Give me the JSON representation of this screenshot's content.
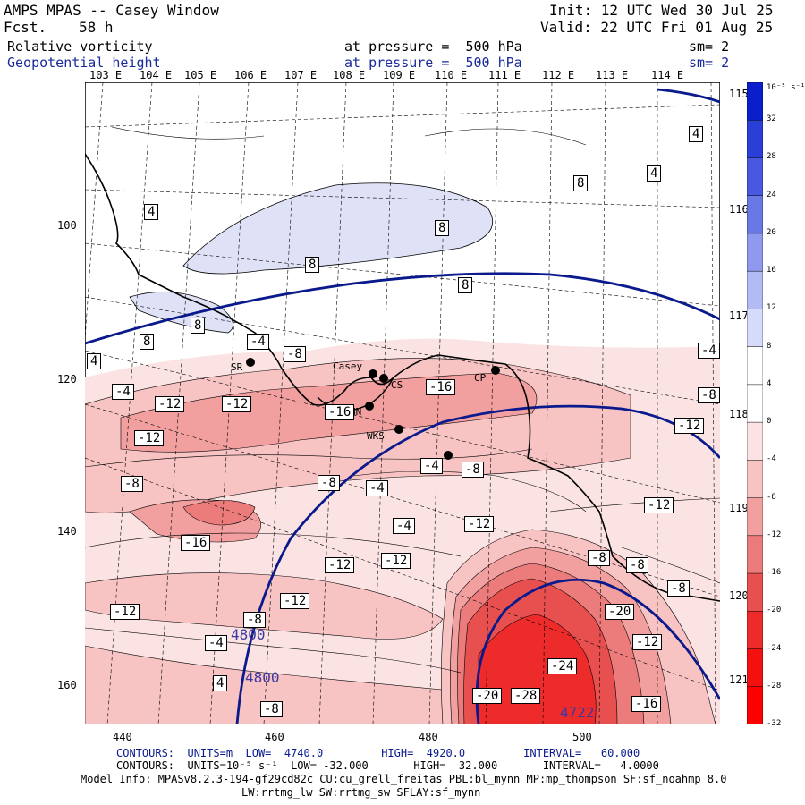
{
  "header": {
    "title": "AMPS MPAS -- Casey Window",
    "fcst_label": "Fcst.",
    "fcst_value": "58 h",
    "init": "Init: 12 UTC Wed 30 Jul 25",
    "valid": "Valid: 22 UTC Fri 01 Aug 25",
    "field1": "Relative vorticity",
    "field2": "Geopotential height",
    "pressure1": "at pressure =  500 hPa",
    "pressure2": "at pressure =  500 hPa",
    "sm1": "sm= 2",
    "sm2": "sm= 2"
  },
  "top_lon_labels": [
    "103 E",
    "104 E",
    "105 E",
    "106 E",
    "107 E",
    "108 E",
    "109 E",
    "110 E",
    "111 E",
    "112 E",
    "113 E",
    "114 E"
  ],
  "right_lon_labels": [
    "115 E",
    "116 E",
    "117 E",
    "118 E",
    "119 E",
    "120 E",
    "121 E"
  ],
  "x_ticks": [
    "440",
    "460",
    "480",
    "500"
  ],
  "y_ticks": [
    "100",
    "120",
    "140",
    "160"
  ],
  "stations": [
    {
      "name": "SR"
    },
    {
      "name": "Casey"
    },
    {
      "name": "CS"
    },
    {
      "name": "HN"
    },
    {
      "name": "CP"
    },
    {
      "name": "WKS"
    },
    {
      "name": "BS"
    }
  ],
  "vort_labels": [
    "4",
    "4",
    "4",
    "8",
    "8",
    "8",
    "8",
    "8",
    "4",
    "4",
    "-4",
    "-8",
    "-4",
    "-4",
    "-12",
    "-12",
    "-16",
    "-16",
    "-12",
    "-12",
    "-8",
    "-8",
    "-12",
    "-4",
    "-12",
    "-8",
    "-12",
    "-8",
    "-16",
    "-8",
    "-4",
    "-12",
    "-4",
    "-4",
    "-8",
    "-12",
    "-20",
    "-12",
    "-24",
    "-16",
    "-28",
    "-20",
    "-8",
    "-8",
    "-8",
    "-12",
    "4",
    "8"
  ],
  "height_labels": [
    "4800",
    "4800",
    "4722"
  ],
  "colorbar": {
    "unit": "10⁻⁵ s⁻¹",
    "ticks": [
      "32",
      "28",
      "24",
      "20",
      "16",
      "12",
      "8",
      "4",
      "0",
      "-4",
      "-8",
      "-12",
      "-16",
      "-20",
      "-24",
      "-28",
      "-32"
    ]
  },
  "footer": {
    "line1": "CONTOURS:  UNITS=m  LOW=  4740.0         HIGH=  4920.0         INTERVAL=   60.000",
    "line2": "CONTOURS:  UNITS=10⁻⁵ s⁻¹  LOW= -32.000       HIGH=  32.000       INTERVAL=   4.0000",
    "line3": "Model Info: MPASv8.2.3-194-gf29cd82c CU:cu_grell_freitas PBL:bl_mynn MP:mp_thompson SF:sf_noahmp 8.0",
    "line4": "LW:rrtmg_lw SW:rrtmg_sw SFLAY:sf_mynn"
  },
  "colors": {
    "height_contour": "#0a1a8c",
    "neg_shade_1": "#fbe3e3",
    "neg_shade_2": "#f7c3c3",
    "neg_shade_3": "#f29f9f",
    "neg_shade_4": "#ec7b7b",
    "neg_shade_5": "#e85050",
    "neg_shade_6": "#ee2b2b",
    "pos_shade": "#dfe2f6"
  }
}
